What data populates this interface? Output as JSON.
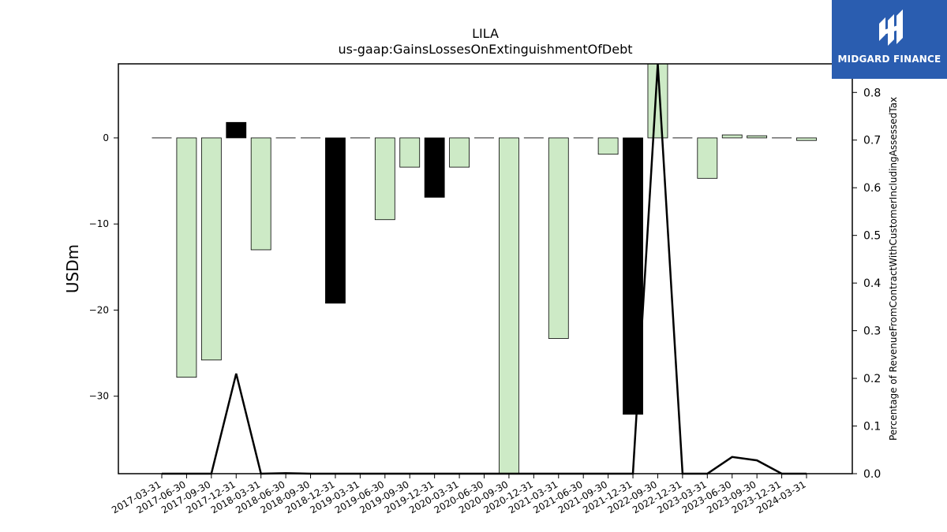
{
  "chart_data": {
    "type": "bar",
    "title": "LILA",
    "subtitle": "us-gaap:GainsLossesOnExtinguishmentOfDebt",
    "ylabel": "USDm",
    "y2label": "Percentage of RevenueFromContractWithCustomerIncludingAssessedTax",
    "ylim": [
      -39,
      8.6
    ],
    "y2lim": [
      0,
      0.86
    ],
    "yticks": [
      0,
      -10,
      -20,
      -30
    ],
    "y2ticks": [
      0.0,
      0.1,
      0.2,
      0.3,
      0.4,
      0.5,
      0.6,
      0.7,
      0.8
    ],
    "categories": [
      "2017-03-31",
      "2017-06-30",
      "2017-09-30",
      "2017-12-31",
      "2018-03-31",
      "2018-06-30",
      "2018-09-30",
      "2018-12-31",
      "2019-03-31",
      "2019-06-30",
      "2019-09-30",
      "2019-12-31",
      "2020-03-31",
      "2020-06-30",
      "2020-09-30",
      "2020-12-31",
      "2021-03-31",
      "2021-06-30",
      "2021-09-30",
      "2021-12-31",
      "2022-09-30",
      "2022-12-31",
      "2023-03-31",
      "2023-06-30",
      "2023-09-30",
      "2023-12-31",
      "2024-03-31"
    ],
    "values": [
      0,
      -27.8,
      -25.8,
      1.8,
      -13.0,
      0,
      0,
      -19.2,
      0,
      -9.5,
      -3.4,
      -6.9,
      -3.4,
      0,
      -39,
      0,
      -23.3,
      0,
      -1.9,
      -32.1,
      8.6,
      0,
      -4.7,
      0.35,
      0.25,
      0,
      -0.3
    ],
    "highlight": [
      "light",
      "light",
      "light",
      "dark",
      "light",
      "light",
      "light",
      "dark",
      "light",
      "light",
      "light",
      "dark",
      "light",
      "light",
      "light",
      "light",
      "light",
      "light",
      "light",
      "dark",
      "light",
      "light",
      "light",
      "light",
      "light",
      "light",
      "light"
    ],
    "percent_line": [
      0,
      0,
      0,
      0.21,
      0,
      0.001,
      0,
      0,
      0,
      0,
      0,
      0,
      0,
      0,
      0,
      0,
      0,
      0,
      0,
      0,
      0.86,
      0,
      0,
      0.035,
      0.028,
      0,
      0
    ],
    "colors": {
      "light": "#cdeac6",
      "dark": "#000000",
      "line": "#000000"
    }
  },
  "logo": {
    "text": "MIDGARD FINANCE",
    "color": "#2a5db0"
  }
}
